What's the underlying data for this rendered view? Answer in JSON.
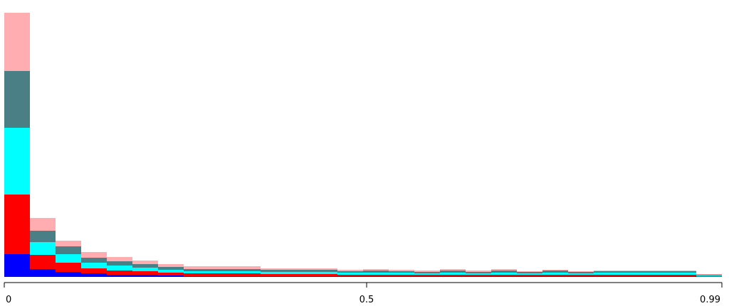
{
  "colors": {
    "background": "#ffffff",
    "axis": "#000000"
  },
  "chart_data": {
    "type": "bar",
    "stacked": true,
    "title": "",
    "xlabel": "",
    "ylabel": "",
    "xlim": [
      0,
      0.99
    ],
    "ylim": [
      0,
      372
    ],
    "grid": false,
    "x_ticks": [
      {
        "value": 0,
        "label": "0"
      },
      {
        "value": 0.5,
        "label": "0.5"
      },
      {
        "value": 0.99,
        "label": "0.99"
      }
    ],
    "bins": [
      [
        0.0,
        0.0354
      ],
      [
        0.0354,
        0.0707
      ],
      [
        0.0707,
        0.1061
      ],
      [
        0.1061,
        0.1414
      ],
      [
        0.1414,
        0.1768
      ],
      [
        0.1768,
        0.2121
      ],
      [
        0.2121,
        0.2475
      ],
      [
        0.2475,
        0.2829
      ],
      [
        0.2829,
        0.3182
      ],
      [
        0.3182,
        0.3536
      ],
      [
        0.3536,
        0.3889
      ],
      [
        0.3889,
        0.4243
      ],
      [
        0.4243,
        0.4596
      ],
      [
        0.4596,
        0.495
      ],
      [
        0.495,
        0.5304
      ],
      [
        0.5304,
        0.5657
      ],
      [
        0.5657,
        0.6011
      ],
      [
        0.6011,
        0.6364
      ],
      [
        0.6364,
        0.6718
      ],
      [
        0.6718,
        0.7071
      ],
      [
        0.7071,
        0.7425
      ],
      [
        0.7425,
        0.7779
      ],
      [
        0.7779,
        0.8132
      ],
      [
        0.8132,
        0.8486
      ],
      [
        0.8486,
        0.8839
      ],
      [
        0.8839,
        0.9193
      ],
      [
        0.9193,
        0.9546
      ],
      [
        0.9546,
        0.99
      ]
    ],
    "series": [
      {
        "color": "#0000ff",
        "values": [
          32,
          11,
          7,
          5,
          3,
          3,
          2,
          1,
          1,
          1,
          1,
          1,
          1,
          1,
          1,
          1,
          1,
          1,
          1,
          1,
          1,
          1,
          1,
          1,
          1,
          1,
          1,
          0
        ]
      },
      {
        "color": "#ff0000",
        "values": [
          84,
          20,
          13,
          7,
          6,
          5,
          4,
          4,
          4,
          4,
          3,
          3,
          3,
          2,
          2,
          2,
          2,
          2,
          2,
          2,
          2,
          2,
          2,
          2,
          2,
          2,
          2,
          1
        ]
      },
      {
        "color": "#00ffff",
        "values": [
          94,
          18,
          12,
          8,
          7,
          5,
          4,
          3,
          3,
          3,
          3,
          3,
          3,
          3,
          3,
          3,
          2,
          3,
          2,
          3,
          2,
          3,
          2,
          3,
          3,
          3,
          3,
          1
        ]
      },
      {
        "color": "#4a7f86",
        "values": [
          80,
          16,
          11,
          7,
          6,
          5,
          4,
          3,
          3,
          3,
          3,
          3,
          3,
          2,
          3,
          2,
          2,
          3,
          2,
          3,
          2,
          3,
          2,
          2,
          2,
          2,
          2,
          1
        ]
      },
      {
        "color": "#ffadb0",
        "values": [
          82,
          18,
          8,
          8,
          6,
          5,
          4,
          4,
          4,
          4,
          2,
          2,
          2,
          2,
          2,
          2,
          2,
          2,
          2,
          2,
          1,
          1,
          1,
          1,
          1,
          1,
          1,
          1
        ]
      }
    ]
  }
}
